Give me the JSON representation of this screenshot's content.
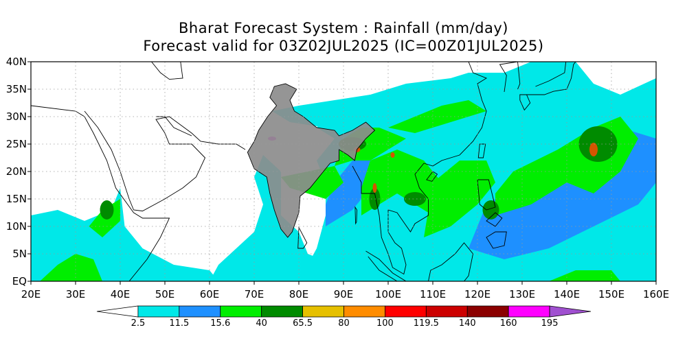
{
  "title": "Bharat Forecast System : Rainfall (mm/day)",
  "subtitle": "Forecast valid for 03Z02JUL2025 (IC=00Z01JUL2025)",
  "map": {
    "lon_range": [
      20,
      160
    ],
    "lat_range": [
      0,
      40
    ],
    "lon_ticks": [
      "20E",
      "30E",
      "40E",
      "50E",
      "60E",
      "70E",
      "80E",
      "90E",
      "100E",
      "110E",
      "120E",
      "130E",
      "140E",
      "150E",
      "160E"
    ],
    "lat_ticks": [
      "EQ",
      "5N",
      "10N",
      "15N",
      "20N",
      "25N",
      "30N",
      "35N",
      "40N"
    ],
    "gridlines": "dotted"
  },
  "colorbar": {
    "labels": [
      "2.5",
      "11.5",
      "15.6",
      "40",
      "65.5",
      "80",
      "100",
      "119.5",
      "140",
      "160",
      "195"
    ],
    "colors": [
      "#ffffff",
      "#00e8e8",
      "#1e90ff",
      "#00ee00",
      "#008b00",
      "#e6c000",
      "#ff8c00",
      "#ff0000",
      "#cc0000",
      "#8b0000",
      "#ff00ff",
      "#a050d0"
    ]
  },
  "rain_colors": {
    "light": "#00e8e8",
    "moderate": "#1e90ff",
    "heavy": "#00ee00",
    "very_heavy": "#008b00",
    "extreme": "#d45500",
    "intense": "#ff00ff",
    "india_land": "#8c8c8c"
  }
}
